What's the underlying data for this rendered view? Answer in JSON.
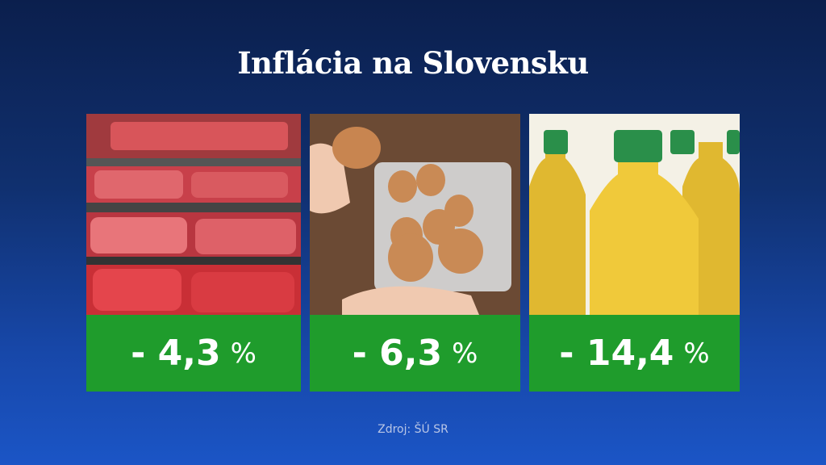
{
  "header": {
    "title": "Inflácia na Slovensku"
  },
  "cards": [
    {
      "value": "- 4,3",
      "unit": "%"
    },
    {
      "value": "- 6,3",
      "unit": "%"
    },
    {
      "value": "- 14,4",
      "unit": "%"
    }
  ],
  "footer": {
    "source": "Zdroj: ŠÚ SR"
  }
}
